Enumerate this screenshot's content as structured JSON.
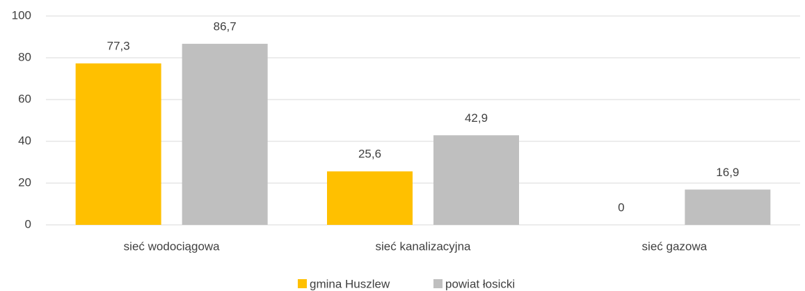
{
  "chart_data": {
    "type": "bar",
    "categories": [
      "sieć wodociągowa",
      "sieć kanalizacyjna",
      "sieć gazowa"
    ],
    "series": [
      {
        "name": "gmina Huszlew",
        "color": "#FFC000",
        "values": [
          77.3,
          25.6,
          0
        ],
        "value_labels": [
          "77,3",
          "25,6",
          "0"
        ]
      },
      {
        "name": "powiat łosicki",
        "color": "#BFBFBF",
        "values": [
          86.7,
          42.9,
          16.9
        ],
        "value_labels": [
          "86,7",
          "42,9",
          "16,9"
        ]
      }
    ],
    "ylim": [
      0,
      100
    ],
    "yticks": [
      0,
      20,
      40,
      60,
      80,
      100
    ],
    "grid": true,
    "legend": "bottom"
  }
}
